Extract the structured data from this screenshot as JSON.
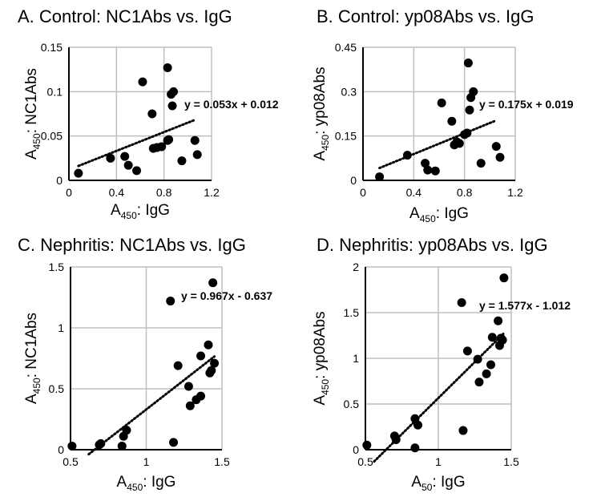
{
  "chart_data": [
    {
      "type": "scatter",
      "title": "A. Control: NC1Abs vs. IgG",
      "xlabel": {
        "prefix": "A",
        "sub": "450",
        "suffix": ": IgG"
      },
      "ylabel": {
        "prefix": "A",
        "sub": "450",
        "suffix": ": NC1Abs"
      },
      "xlim": [
        0,
        1.2
      ],
      "ylim": [
        0,
        0.15
      ],
      "xticks": [
        0,
        0.4,
        0.8,
        1.2
      ],
      "xtick_labels": [
        "0",
        "0.4",
        "0.8",
        "1.2"
      ],
      "yticks": [
        0,
        0.05,
        0.1,
        0.15
      ],
      "ytick_labels": [
        "0",
        "0.05",
        "0.1",
        "0.15"
      ],
      "grid": true,
      "points": [
        [
          0.08,
          0.008
        ],
        [
          0.35,
          0.025
        ],
        [
          0.47,
          0.027
        ],
        [
          0.5,
          0.017
        ],
        [
          0.57,
          0.011
        ],
        [
          0.62,
          0.111
        ],
        [
          0.7,
          0.075
        ],
        [
          0.71,
          0.036
        ],
        [
          0.74,
          0.037
        ],
        [
          0.78,
          0.038
        ],
        [
          0.83,
          0.045
        ],
        [
          0.84,
          0.046
        ],
        [
          0.83,
          0.127
        ],
        [
          0.86,
          0.097
        ],
        [
          0.87,
          0.084
        ],
        [
          0.88,
          0.1
        ],
        [
          0.95,
          0.022
        ],
        [
          1.06,
          0.045
        ],
        [
          1.08,
          0.029
        ]
      ],
      "trendline": {
        "slope": 0.053,
        "intercept": 0.012,
        "x_range": [
          0.08,
          1.05
        ]
      },
      "equation": "y = 0.053x + 0.012"
    },
    {
      "type": "scatter",
      "title": "B. Control: yp08Abs vs. IgG",
      "xlabel": {
        "prefix": "A",
        "sub": "450",
        "suffix": ": IgG"
      },
      "ylabel": {
        "prefix": "A",
        "sub": "450",
        "suffix": ": yp08Abs"
      },
      "xlim": [
        0,
        1.2
      ],
      "ylim": [
        0,
        0.45
      ],
      "xticks": [
        0,
        0.4,
        0.8,
        1.2
      ],
      "xtick_labels": [
        "0",
        "0.4",
        "0.8",
        "1.2"
      ],
      "yticks": [
        0,
        0.15,
        0.3,
        0.45
      ],
      "ytick_labels": [
        "0",
        "0.15",
        "0.3",
        "0.45"
      ],
      "grid": true,
      "points": [
        [
          0.13,
          0.012
        ],
        [
          0.35,
          0.085
        ],
        [
          0.49,
          0.058
        ],
        [
          0.51,
          0.035
        ],
        [
          0.57,
          0.032
        ],
        [
          0.62,
          0.262
        ],
        [
          0.7,
          0.2
        ],
        [
          0.72,
          0.12
        ],
        [
          0.74,
          0.13
        ],
        [
          0.76,
          0.125
        ],
        [
          0.8,
          0.155
        ],
        [
          0.82,
          0.16
        ],
        [
          0.83,
          0.397
        ],
        [
          0.84,
          0.238
        ],
        [
          0.85,
          0.28
        ],
        [
          0.87,
          0.3
        ],
        [
          0.93,
          0.058
        ],
        [
          1.05,
          0.115
        ],
        [
          1.08,
          0.078
        ]
      ],
      "trendline": {
        "slope": 0.175,
        "intercept": 0.019,
        "x_range": [
          0.13,
          1.05
        ]
      },
      "equation": "y = 0.175x + 0.019"
    },
    {
      "type": "scatter",
      "title": "C. Nephritis: NC1Abs vs. IgG",
      "xlabel": {
        "prefix": "A",
        "sub": "450",
        "suffix": ": IgG"
      },
      "ylabel": {
        "prefix": "A",
        "sub": "450",
        "suffix": ": NC1Abs"
      },
      "xlim": [
        0.5,
        1.5
      ],
      "ylim": [
        0,
        1.5
      ],
      "xticks": [
        0.5,
        1,
        1.5
      ],
      "xtick_labels": [
        "0.5",
        "1",
        "1.5"
      ],
      "yticks": [
        0,
        0.5,
        1,
        1.5
      ],
      "ytick_labels": [
        "0",
        "0.5",
        "1",
        "1.5"
      ],
      "grid": true,
      "points": [
        [
          0.51,
          0.03
        ],
        [
          0.69,
          0.04
        ],
        [
          0.7,
          0.05
        ],
        [
          0.84,
          0.03
        ],
        [
          0.85,
          0.11
        ],
        [
          0.87,
          0.16
        ],
        [
          1.16,
          1.22
        ],
        [
          1.18,
          0.06
        ],
        [
          1.21,
          0.69
        ],
        [
          1.28,
          0.52
        ],
        [
          1.29,
          0.36
        ],
        [
          1.33,
          0.41
        ],
        [
          1.36,
          0.44
        ],
        [
          1.36,
          0.77
        ],
        [
          1.41,
          0.86
        ],
        [
          1.42,
          0.63
        ],
        [
          1.43,
          0.65
        ],
        [
          1.45,
          0.71
        ],
        [
          1.44,
          1.37
        ]
      ],
      "trendline": {
        "slope": 0.967,
        "intercept": -0.637,
        "x_range": [
          0.62,
          1.45
        ]
      },
      "equation": "y = 0.967x - 0.637"
    },
    {
      "type": "scatter",
      "title": "D. Nephritis: yp08Abs vs. IgG",
      "xlabel": {
        "prefix": "A",
        "sub": "50",
        "suffix": ": IgG"
      },
      "ylabel": {
        "prefix": "A",
        "sub": "450",
        "suffix": ": yp08Abs"
      },
      "xlim": [
        0.5,
        1.5
      ],
      "ylim": [
        0,
        2
      ],
      "xticks": [
        0.5,
        1,
        1.5
      ],
      "xtick_labels": [
        "0.5",
        "1",
        "1.5"
      ],
      "yticks": [
        0,
        0.5,
        1,
        1.5,
        2
      ],
      "ytick_labels": [
        "0",
        "0.5",
        "1",
        "1.5",
        "2"
      ],
      "grid": true,
      "points": [
        [
          0.51,
          0.05
        ],
        [
          0.7,
          0.15
        ],
        [
          0.71,
          0.11
        ],
        [
          0.84,
          0.34
        ],
        [
          0.86,
          0.27
        ],
        [
          0.84,
          0.02
        ],
        [
          1.16,
          1.61
        ],
        [
          1.17,
          0.21
        ],
        [
          1.2,
          1.08
        ],
        [
          1.27,
          0.99
        ],
        [
          1.28,
          0.74
        ],
        [
          1.33,
          0.83
        ],
        [
          1.36,
          0.93
        ],
        [
          1.37,
          1.23
        ],
        [
          1.41,
          1.41
        ],
        [
          1.42,
          1.14
        ],
        [
          1.43,
          1.22
        ],
        [
          1.44,
          1.2
        ],
        [
          1.45,
          1.88
        ]
      ],
      "trendline": {
        "slope": 1.577,
        "intercept": -1.012,
        "x_range": [
          0.56,
          1.45
        ]
      },
      "equation": "y = 1.577x - 1.012"
    }
  ]
}
